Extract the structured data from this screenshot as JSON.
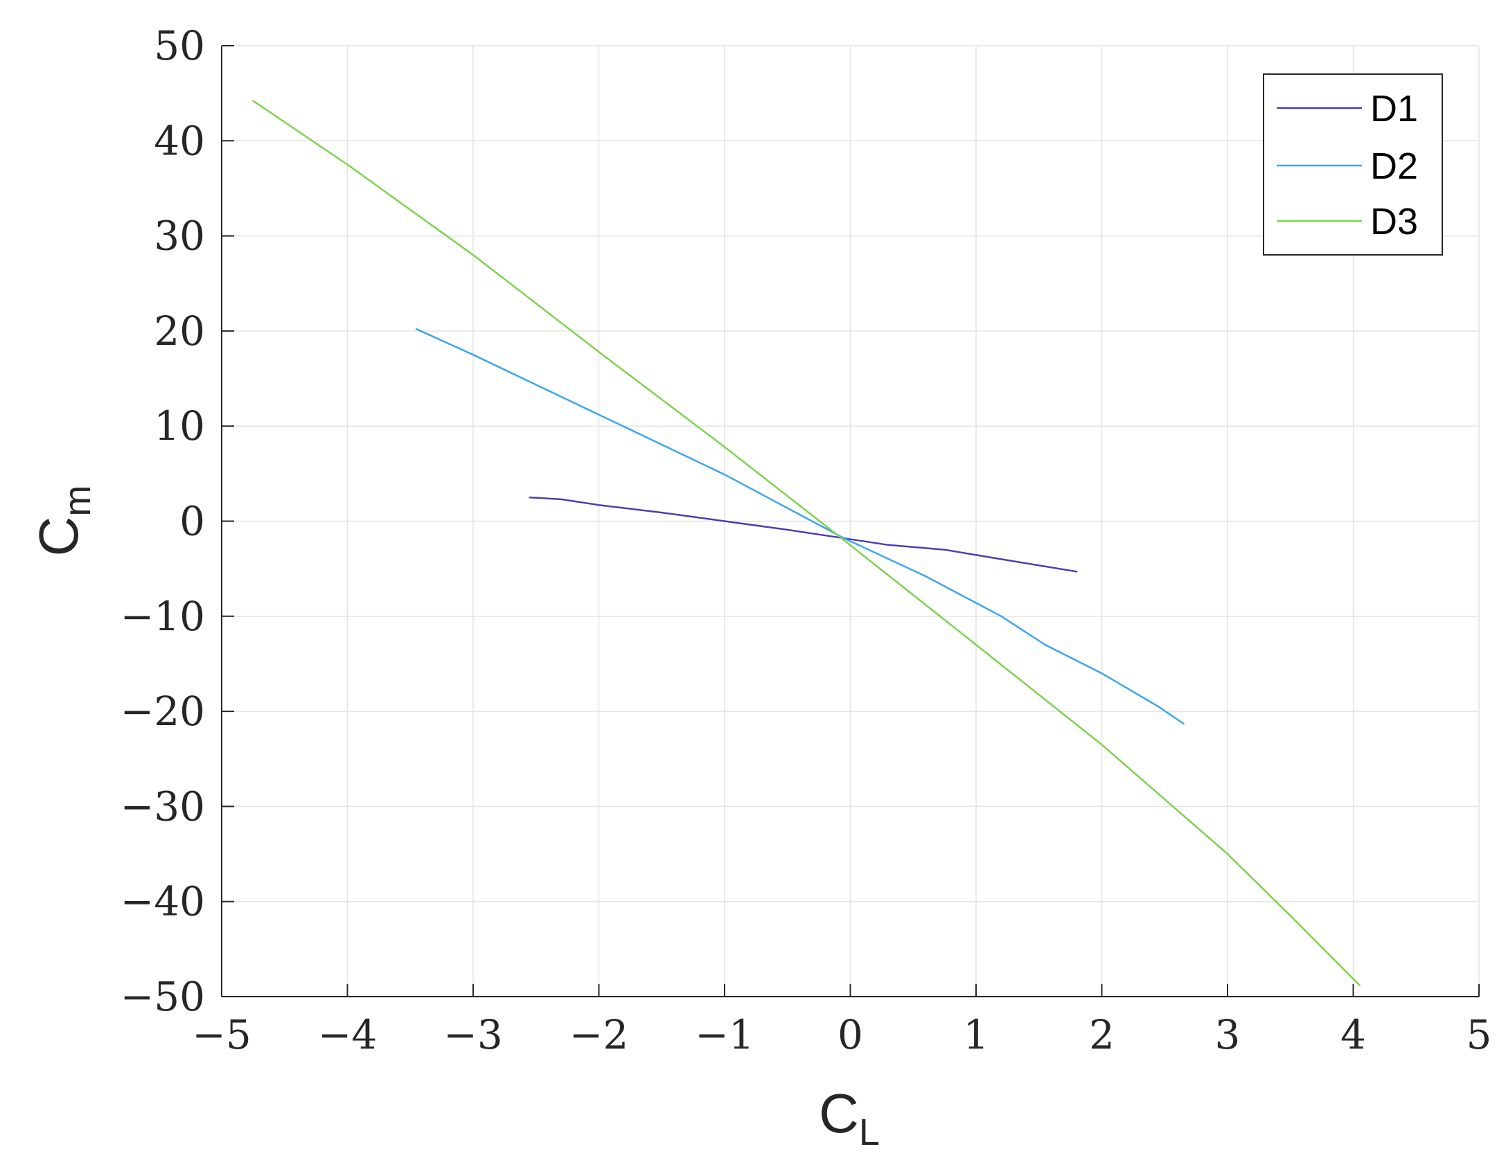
{
  "chart_data": {
    "type": "line",
    "xlabel": {
      "main": "C",
      "sub": "L"
    },
    "ylabel": {
      "main": "C",
      "sub": "m"
    },
    "xlim": [
      -5,
      5
    ],
    "ylim": [
      -50,
      50
    ],
    "xticks": [
      -5,
      -4,
      -3,
      -2,
      -1,
      0,
      1,
      2,
      3,
      4,
      5
    ],
    "yticks": [
      -50,
      -40,
      -30,
      -20,
      -10,
      0,
      10,
      20,
      30,
      40,
      50
    ],
    "xtick_labels": [
      "−5",
      "−4",
      "−3",
      "−2",
      "−1",
      "0",
      "1",
      "2",
      "3",
      "4",
      "5"
    ],
    "ytick_labels": [
      "−50",
      "−40",
      "−30",
      "−20",
      "−10",
      "0",
      "10",
      "20",
      "30",
      "40",
      "50"
    ],
    "grid": true,
    "legend_position": "top-right",
    "series": [
      {
        "name": "D1",
        "color": "#4b3fb5",
        "x": [
          -2.55,
          -2.3,
          -2.0,
          -1.5,
          -1.0,
          -0.5,
          -0.05,
          0.3,
          0.75,
          1.2,
          1.8
        ],
        "y": [
          2.5,
          2.3,
          1.7,
          0.9,
          0.0,
          -0.9,
          -1.8,
          -2.5,
          -3.0,
          -4.0,
          -5.3
        ]
      },
      {
        "name": "D2",
        "color": "#3ca6ee",
        "x": [
          -3.45,
          -3.0,
          -2.0,
          -1.0,
          -0.05,
          0.6,
          1.2,
          1.55,
          2.0,
          2.45,
          2.65
        ],
        "y": [
          20.2,
          17.5,
          11.2,
          4.9,
          -1.8,
          -5.8,
          -10.0,
          -13.0,
          -16.0,
          -19.5,
          -21.3
        ]
      },
      {
        "name": "D3",
        "color": "#7fd24e",
        "x": [
          -4.75,
          -4.0,
          -3.0,
          -2.0,
          -1.0,
          -0.05,
          1.0,
          2.0,
          3.0,
          3.5,
          4.05
        ],
        "y": [
          44.2,
          37.5,
          28.0,
          17.8,
          7.8,
          -2.0,
          -13.0,
          -23.5,
          -35.0,
          -41.5,
          -48.8
        ]
      }
    ]
  }
}
